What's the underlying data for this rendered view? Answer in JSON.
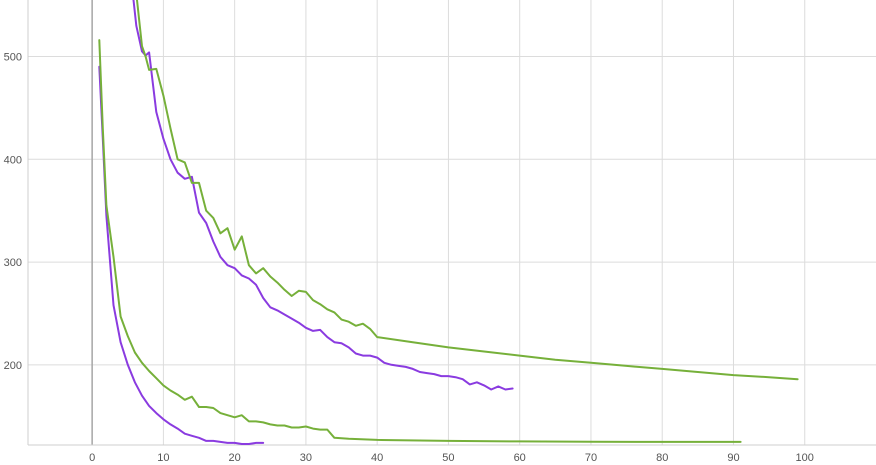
{
  "chart_data": {
    "type": "line",
    "title": "",
    "xlabel": "",
    "ylabel": "",
    "xlim": [
      -9,
      110
    ],
    "ylim": [
      122,
      555
    ],
    "x_ticks": [
      0,
      10,
      20,
      30,
      40,
      50,
      60,
      70,
      80,
      90,
      100
    ],
    "y_ticks": [
      200,
      300,
      400,
      500
    ],
    "grid": true,
    "legend": "none",
    "series": [
      {
        "color": "#8a3be0",
        "points": [
          [
            5.8,
            555
          ],
          [
            6.2,
            530
          ],
          [
            7,
            505
          ],
          [
            7.5,
            501
          ],
          [
            8,
            504
          ],
          [
            9,
            446
          ],
          [
            10,
            420
          ],
          [
            11,
            400
          ],
          [
            12,
            387
          ],
          [
            13,
            381
          ],
          [
            14,
            383
          ],
          [
            15,
            348
          ],
          [
            16,
            338
          ],
          [
            17,
            320
          ],
          [
            18,
            305
          ],
          [
            19,
            297
          ],
          [
            20,
            294
          ],
          [
            21,
            287
          ],
          [
            22,
            284
          ],
          [
            23,
            278
          ],
          [
            24,
            265
          ],
          [
            25,
            256
          ],
          [
            26,
            253
          ],
          [
            27,
            249
          ],
          [
            28,
            245
          ],
          [
            29,
            241
          ],
          [
            30,
            236
          ],
          [
            31,
            233
          ],
          [
            32,
            234
          ],
          [
            33,
            227
          ],
          [
            34,
            222
          ],
          [
            35,
            221
          ],
          [
            36,
            217
          ],
          [
            37,
            211
          ],
          [
            38,
            209
          ],
          [
            39,
            209
          ],
          [
            40,
            207
          ],
          [
            41,
            202
          ],
          [
            42,
            200
          ],
          [
            43,
            199
          ],
          [
            44,
            198
          ],
          [
            45,
            196
          ],
          [
            46,
            193
          ],
          [
            47,
            192
          ],
          [
            48,
            191
          ],
          [
            49,
            189
          ],
          [
            50,
            189
          ],
          [
            51,
            188
          ],
          [
            52,
            186
          ],
          [
            53,
            181
          ],
          [
            54,
            183
          ],
          [
            55,
            180
          ],
          [
            56,
            176
          ],
          [
            57,
            179
          ],
          [
            58,
            176
          ],
          [
            59,
            177
          ]
        ]
      },
      {
        "color": "#76b03a",
        "points": [
          [
            6.3,
            555
          ],
          [
            7,
            510
          ],
          [
            7.5,
            500
          ],
          [
            8,
            487
          ],
          [
            9,
            488
          ],
          [
            10,
            462
          ],
          [
            11,
            430
          ],
          [
            12,
            400
          ],
          [
            13,
            397
          ],
          [
            14,
            377
          ],
          [
            15,
            377
          ],
          [
            16,
            350
          ],
          [
            17,
            343
          ],
          [
            18,
            328
          ],
          [
            19,
            333
          ],
          [
            20,
            312
          ],
          [
            21,
            325
          ],
          [
            22,
            297
          ],
          [
            23,
            289
          ],
          [
            24,
            294
          ],
          [
            25,
            286
          ],
          [
            26,
            280
          ],
          [
            27,
            273
          ],
          [
            28,
            267
          ],
          [
            29,
            272
          ],
          [
            30,
            271
          ],
          [
            31,
            263
          ],
          [
            32,
            259
          ],
          [
            33,
            254
          ],
          [
            34,
            251
          ],
          [
            35,
            244
          ],
          [
            36,
            242
          ],
          [
            37,
            238
          ],
          [
            38,
            240
          ],
          [
            39,
            235
          ],
          [
            40,
            227
          ],
          [
            45,
            222
          ],
          [
            50,
            217
          ],
          [
            55,
            213
          ],
          [
            60,
            209
          ],
          [
            65,
            205
          ],
          [
            70,
            202
          ],
          [
            75,
            199
          ],
          [
            80,
            196
          ],
          [
            85,
            193
          ],
          [
            90,
            190
          ],
          [
            95,
            188
          ],
          [
            99,
            186
          ]
        ]
      },
      {
        "color": "#8a3be0",
        "points": [
          [
            1,
            490
          ],
          [
            1.5,
            420
          ],
          [
            2,
            345
          ],
          [
            3,
            258
          ],
          [
            4,
            222
          ],
          [
            5,
            200
          ],
          [
            6,
            183
          ],
          [
            7,
            170
          ],
          [
            8,
            160
          ],
          [
            9,
            153
          ],
          [
            10,
            147
          ],
          [
            11,
            142
          ],
          [
            12,
            138
          ],
          [
            13,
            133
          ],
          [
            14,
            131
          ],
          [
            15,
            129
          ],
          [
            16,
            126
          ],
          [
            17,
            126
          ],
          [
            18,
            125
          ],
          [
            19,
            124
          ],
          [
            20,
            124
          ],
          [
            21,
            123
          ],
          [
            22,
            123
          ],
          [
            23,
            124
          ],
          [
            24,
            124
          ]
        ]
      },
      {
        "color": "#76b03a",
        "points": [
          [
            1,
            516
          ],
          [
            1.5,
            430
          ],
          [
            2,
            355
          ],
          [
            3,
            305
          ],
          [
            4,
            247
          ],
          [
            5,
            228
          ],
          [
            6,
            212
          ],
          [
            7,
            202
          ],
          [
            8,
            194
          ],
          [
            9,
            187
          ],
          [
            10,
            180
          ],
          [
            11,
            175
          ],
          [
            12,
            171
          ],
          [
            13,
            166
          ],
          [
            14,
            169
          ],
          [
            15,
            159
          ],
          [
            16,
            159
          ],
          [
            17,
            158
          ],
          [
            18,
            153
          ],
          [
            19,
            151
          ],
          [
            20,
            149
          ],
          [
            21,
            151
          ],
          [
            22,
            145
          ],
          [
            23,
            145
          ],
          [
            24,
            144
          ],
          [
            25,
            142
          ],
          [
            26,
            141
          ],
          [
            27,
            141
          ],
          [
            28,
            139
          ],
          [
            29,
            139
          ],
          [
            30,
            140
          ],
          [
            31,
            138
          ],
          [
            32,
            137
          ],
          [
            33,
            137
          ],
          [
            34,
            129
          ],
          [
            36,
            128
          ],
          [
            40,
            127
          ],
          [
            50,
            126
          ],
          [
            60,
            125.5
          ],
          [
            70,
            125.2
          ],
          [
            80,
            125
          ],
          [
            91,
            125
          ]
        ]
      }
    ]
  }
}
